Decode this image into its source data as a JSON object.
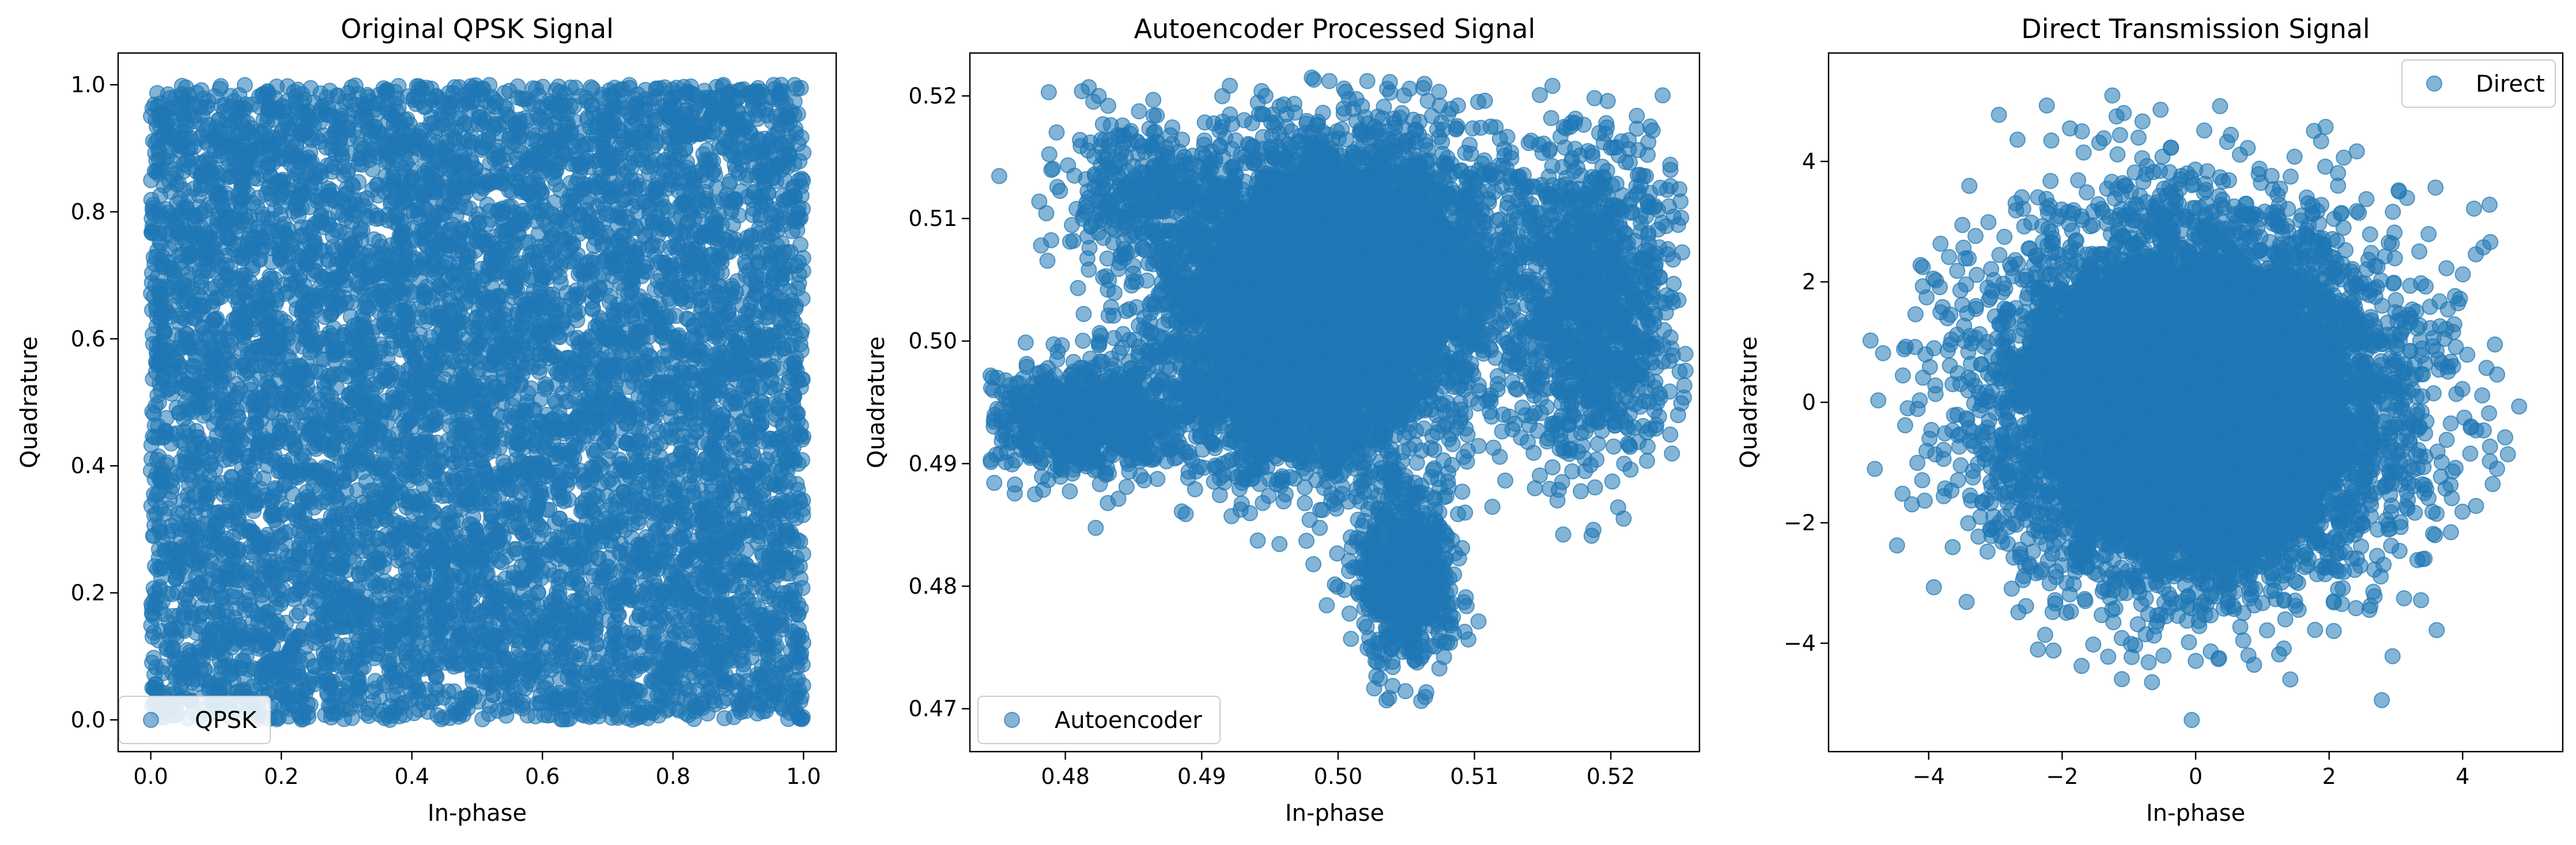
{
  "chart_data": [
    {
      "type": "scatter",
      "title": "Original QPSK Signal",
      "xlabel": "In-phase",
      "ylabel": "Quadrature",
      "xlim": [
        -0.05,
        1.05
      ],
      "ylim": [
        -0.05,
        1.05
      ],
      "xticks": [
        0.0,
        0.2,
        0.4,
        0.6,
        0.8,
        1.0
      ],
      "xtick_labels": [
        "0.0",
        "0.2",
        "0.4",
        "0.6",
        "0.8",
        "1.0"
      ],
      "yticks": [
        0.0,
        0.2,
        0.4,
        0.6,
        0.8,
        1.0
      ],
      "ytick_labels": [
        "0.0",
        "0.2",
        "0.4",
        "0.6",
        "0.8",
        "1.0"
      ],
      "legend": {
        "label": "QPSK",
        "position": "lower-left"
      },
      "series": [
        {
          "name": "QPSK",
          "color": "#1f77b4",
          "alpha": 0.55,
          "distribution": "uniform",
          "x_range": [
            0.0,
            1.0
          ],
          "y_range": [
            0.0,
            1.0
          ]
        }
      ]
    },
    {
      "type": "scatter",
      "title": "Autoencoder Processed Signal",
      "xlabel": "In-phase",
      "ylabel": "Quadrature",
      "xlim": [
        0.473,
        0.5265
      ],
      "ylim": [
        0.4665,
        0.5235
      ],
      "xticks": [
        0.48,
        0.49,
        0.5,
        0.51,
        0.52
      ],
      "xtick_labels": [
        "0.48",
        "0.49",
        "0.50",
        "0.51",
        "0.52"
      ],
      "yticks": [
        0.47,
        0.48,
        0.49,
        0.5,
        0.51,
        0.52
      ],
      "ytick_labels": [
        "0.47",
        "0.48",
        "0.49",
        "0.50",
        "0.51",
        "0.52"
      ],
      "legend": {
        "label": "Autoencoder",
        "position": "lower-left"
      },
      "series": [
        {
          "name": "Autoencoder",
          "color": "#1f77b4",
          "alpha": 0.55,
          "clusters": [
            {
              "x": 0.5,
              "y": 0.506,
              "sx": 0.0065,
              "sy": 0.0055,
              "weight": 0.5
            },
            {
              "x": 0.4975,
              "y": 0.496,
              "sx": 0.0055,
              "sy": 0.0045,
              "weight": 0.18
            },
            {
              "x": 0.5185,
              "y": 0.503,
              "sx": 0.003,
              "sy": 0.0065,
              "weight": 0.13
            },
            {
              "x": 0.4815,
              "y": 0.4935,
              "sx": 0.0035,
              "sy": 0.0022,
              "weight": 0.09
            },
            {
              "x": 0.505,
              "y": 0.4805,
              "sx": 0.0018,
              "sy": 0.0035,
              "weight": 0.07
            },
            {
              "x": 0.4855,
              "y": 0.5125,
              "sx": 0.003,
              "sy": 0.003,
              "weight": 0.03
            }
          ],
          "x_range": [
            0.4745,
            0.5255
          ],
          "y_range": [
            0.468,
            0.5215
          ]
        }
      ]
    },
    {
      "type": "scatter",
      "title": "Direct Transmission Signal",
      "xlabel": "In-phase",
      "ylabel": "Quadrature",
      "xlim": [
        -5.5,
        5.5
      ],
      "ylim": [
        -5.8,
        5.8
      ],
      "xticks": [
        -4,
        -2,
        0,
        2,
        4
      ],
      "xtick_labels": [
        "−4",
        "−2",
        "0",
        "2",
        "4"
      ],
      "yticks": [
        -4,
        -2,
        0,
        2,
        4
      ],
      "ytick_labels": [
        "−4",
        "−2",
        "0",
        "2",
        "4"
      ],
      "legend": {
        "label": "Direct",
        "position": "top-right"
      },
      "series": [
        {
          "name": "Direct",
          "color": "#1f77b4",
          "alpha": 0.55,
          "distribution": "gaussian",
          "center": [
            0,
            0
          ],
          "std": [
            1.45,
            1.45
          ],
          "x_range": [
            -5.1,
            5.2
          ],
          "y_range": [
            -5.4,
            5.2
          ]
        }
      ]
    }
  ]
}
